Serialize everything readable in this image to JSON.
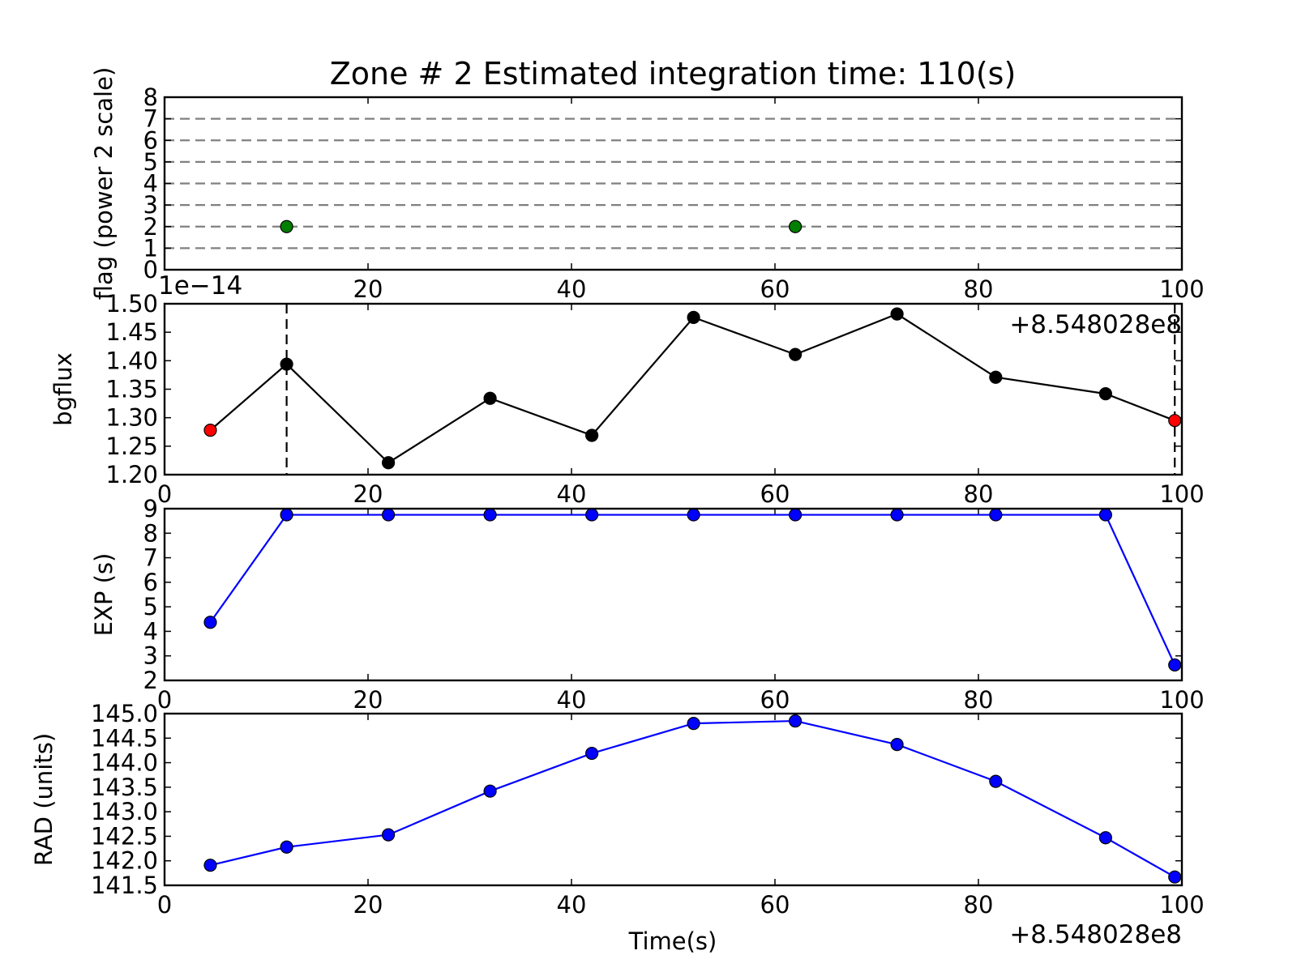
{
  "chart_data": {
    "type": "line",
    "title": "Zone # 2 Estimated integration time: 110(s)",
    "xlabel": "Time(s)",
    "x_offset_label": "+8.548028e8",
    "xlim": [
      0,
      100
    ],
    "x_ticks": [
      0,
      20,
      40,
      60,
      80,
      100
    ],
    "panels": [
      {
        "id": "flag",
        "ylabel": "flag (power 2 scale)",
        "ylim": [
          0,
          8
        ],
        "y_ticks": [
          0,
          1,
          2,
          3,
          4,
          5,
          6,
          7,
          8
        ],
        "y_tick_labels": [
          "0",
          "1",
          "2",
          "3",
          "4",
          "5",
          "6",
          "7",
          "8"
        ],
        "x_tick_labels": [
          "",
          "20",
          "40",
          "60",
          "80",
          "100"
        ],
        "hlines": [
          1,
          2,
          3,
          4,
          5,
          6,
          7
        ],
        "hline_color": "#808080",
        "series": [
          {
            "name": "flag",
            "x": [
              12,
              62
            ],
            "y": [
              2,
              2
            ],
            "color": "#007f00",
            "line": false
          }
        ]
      },
      {
        "id": "bgflux",
        "ylabel": "bgflux",
        "ylim": [
          1.2,
          1.5
        ],
        "y_ticks": [
          1.2,
          1.25,
          1.3,
          1.35,
          1.4,
          1.45,
          1.5
        ],
        "y_tick_labels": [
          "1.20",
          "1.25",
          "1.30",
          "1.35",
          "1.40",
          "1.45",
          "1.50"
        ],
        "x_tick_labels": [
          "0",
          "20",
          "40",
          "60",
          "80",
          "100"
        ],
        "y_exponent_label": "1e−14",
        "x_offset_label": "+8.548028e8",
        "vlines": [
          12,
          99.3
        ],
        "series": [
          {
            "name": "bgflux",
            "x": [
              4.5,
              12,
              22,
              32,
              42,
              52,
              62,
              72,
              81.7,
              92.5,
              99.3
            ],
            "y": [
              1.278,
              1.394,
              1.221,
              1.334,
              1.269,
              1.476,
              1.411,
              1.482,
              1.371,
              1.342,
              1.295
            ],
            "color": "#000000",
            "line": true,
            "marker_colors": [
              "#ff0000",
              "#000000",
              "#000000",
              "#000000",
              "#000000",
              "#000000",
              "#000000",
              "#000000",
              "#000000",
              "#000000",
              "#ff0000"
            ]
          }
        ]
      },
      {
        "id": "exp",
        "ylabel": "EXP (s)",
        "ylim": [
          2,
          9
        ],
        "y_ticks": [
          2,
          3,
          4,
          5,
          6,
          7,
          8,
          9
        ],
        "y_tick_labels": [
          "2",
          "3",
          "4",
          "5",
          "6",
          "7",
          "8",
          "9"
        ],
        "x_tick_labels": [
          "0",
          "20",
          "40",
          "60",
          "80",
          "100"
        ],
        "series": [
          {
            "name": "EXP",
            "x": [
              4.5,
              12,
              22,
              32,
              42,
              52,
              62,
              72,
              81.7,
              92.5,
              99.3
            ],
            "y": [
              4.37,
              8.75,
              8.75,
              8.75,
              8.75,
              8.75,
              8.75,
              8.75,
              8.75,
              8.75,
              2.63
            ],
            "color": "#0000ff",
            "line": true
          }
        ]
      },
      {
        "id": "rad",
        "ylabel": "RAD (units)",
        "ylim": [
          141.5,
          145.0
        ],
        "y_ticks": [
          141.5,
          142.0,
          142.5,
          143.0,
          143.5,
          144.0,
          144.5,
          145.0
        ],
        "y_tick_labels": [
          "141.5",
          "142.0",
          "142.5",
          "143.0",
          "143.5",
          "144.0",
          "144.5",
          "145.0"
        ],
        "x_tick_labels": [
          "0",
          "20",
          "40",
          "60",
          "80",
          "100"
        ],
        "series": [
          {
            "name": "RAD",
            "x": [
              4.5,
              12,
              22,
              32,
              42,
              52,
              62,
              72,
              81.7,
              92.5,
              99.3
            ],
            "y": [
              141.91,
              142.28,
              142.53,
              143.42,
              144.19,
              144.8,
              144.85,
              144.37,
              143.62,
              142.47,
              141.67
            ],
            "color": "#0000ff",
            "line": true
          }
        ]
      }
    ]
  }
}
